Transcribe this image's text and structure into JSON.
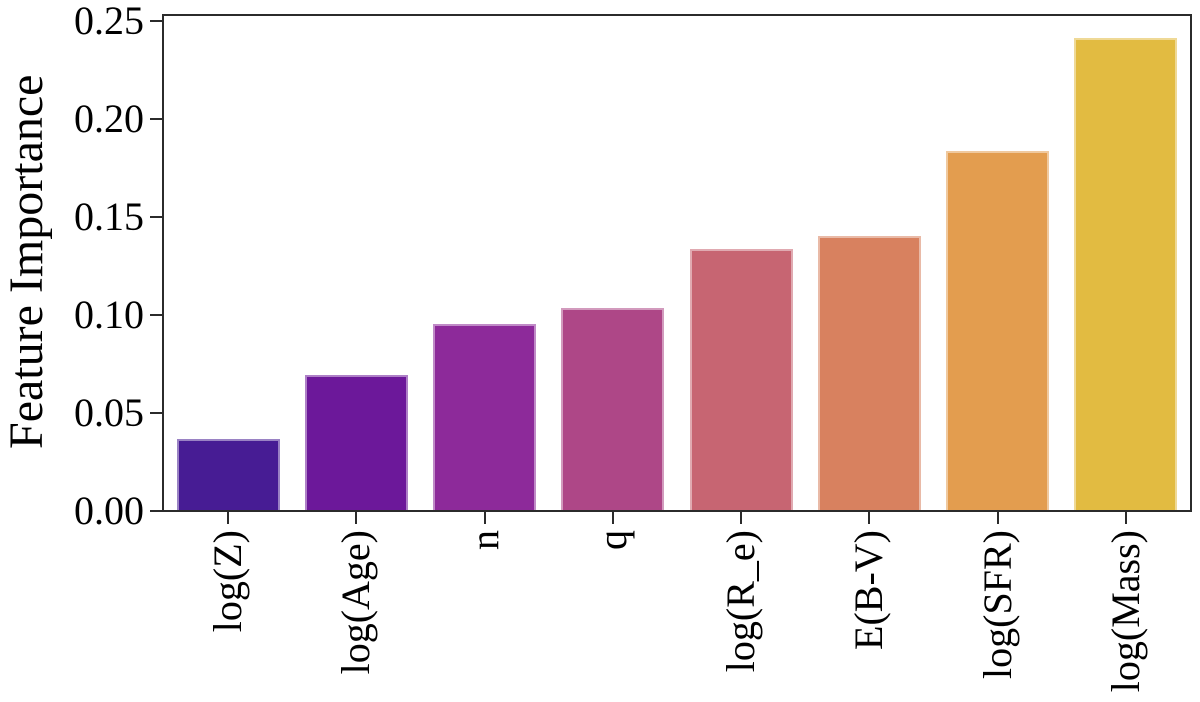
{
  "figure": {
    "background": "#ffffff",
    "axis_color": "#2b2b2b",
    "text_color": "#000000"
  },
  "chart_data": {
    "type": "bar",
    "title": "",
    "xlabel": "",
    "ylabel": "Feature Importance",
    "categories": [
      "log(Z)",
      "log(Age)",
      "n",
      "q",
      "log(R_e)",
      "E(B-V)",
      "log(SFR)",
      "log(Mass)"
    ],
    "values": [
      0.036,
      0.069,
      0.095,
      0.103,
      0.133,
      0.14,
      0.183,
      0.241
    ],
    "bar_colors": [
      "#471c94",
      "#6c189a",
      "#8d2a9a",
      "#ae4787",
      "#c76572",
      "#d8815f",
      "#e39d4f",
      "#e2bb41"
    ],
    "bar_edge_color": "rgba(255,255,255,0.45)",
    "ylim": [
      0,
      0.252
    ],
    "ytick_labels": [
      "0.00",
      "0.05",
      "0.10",
      "0.15",
      "0.20",
      "0.25"
    ],
    "ytick_values": [
      0.0,
      0.05,
      0.1,
      0.15,
      0.2,
      0.25
    ],
    "x_tick_rotation_deg": 90,
    "grid": false,
    "bar_width_fraction": 0.8,
    "colormap": "plasma-desaturated"
  }
}
